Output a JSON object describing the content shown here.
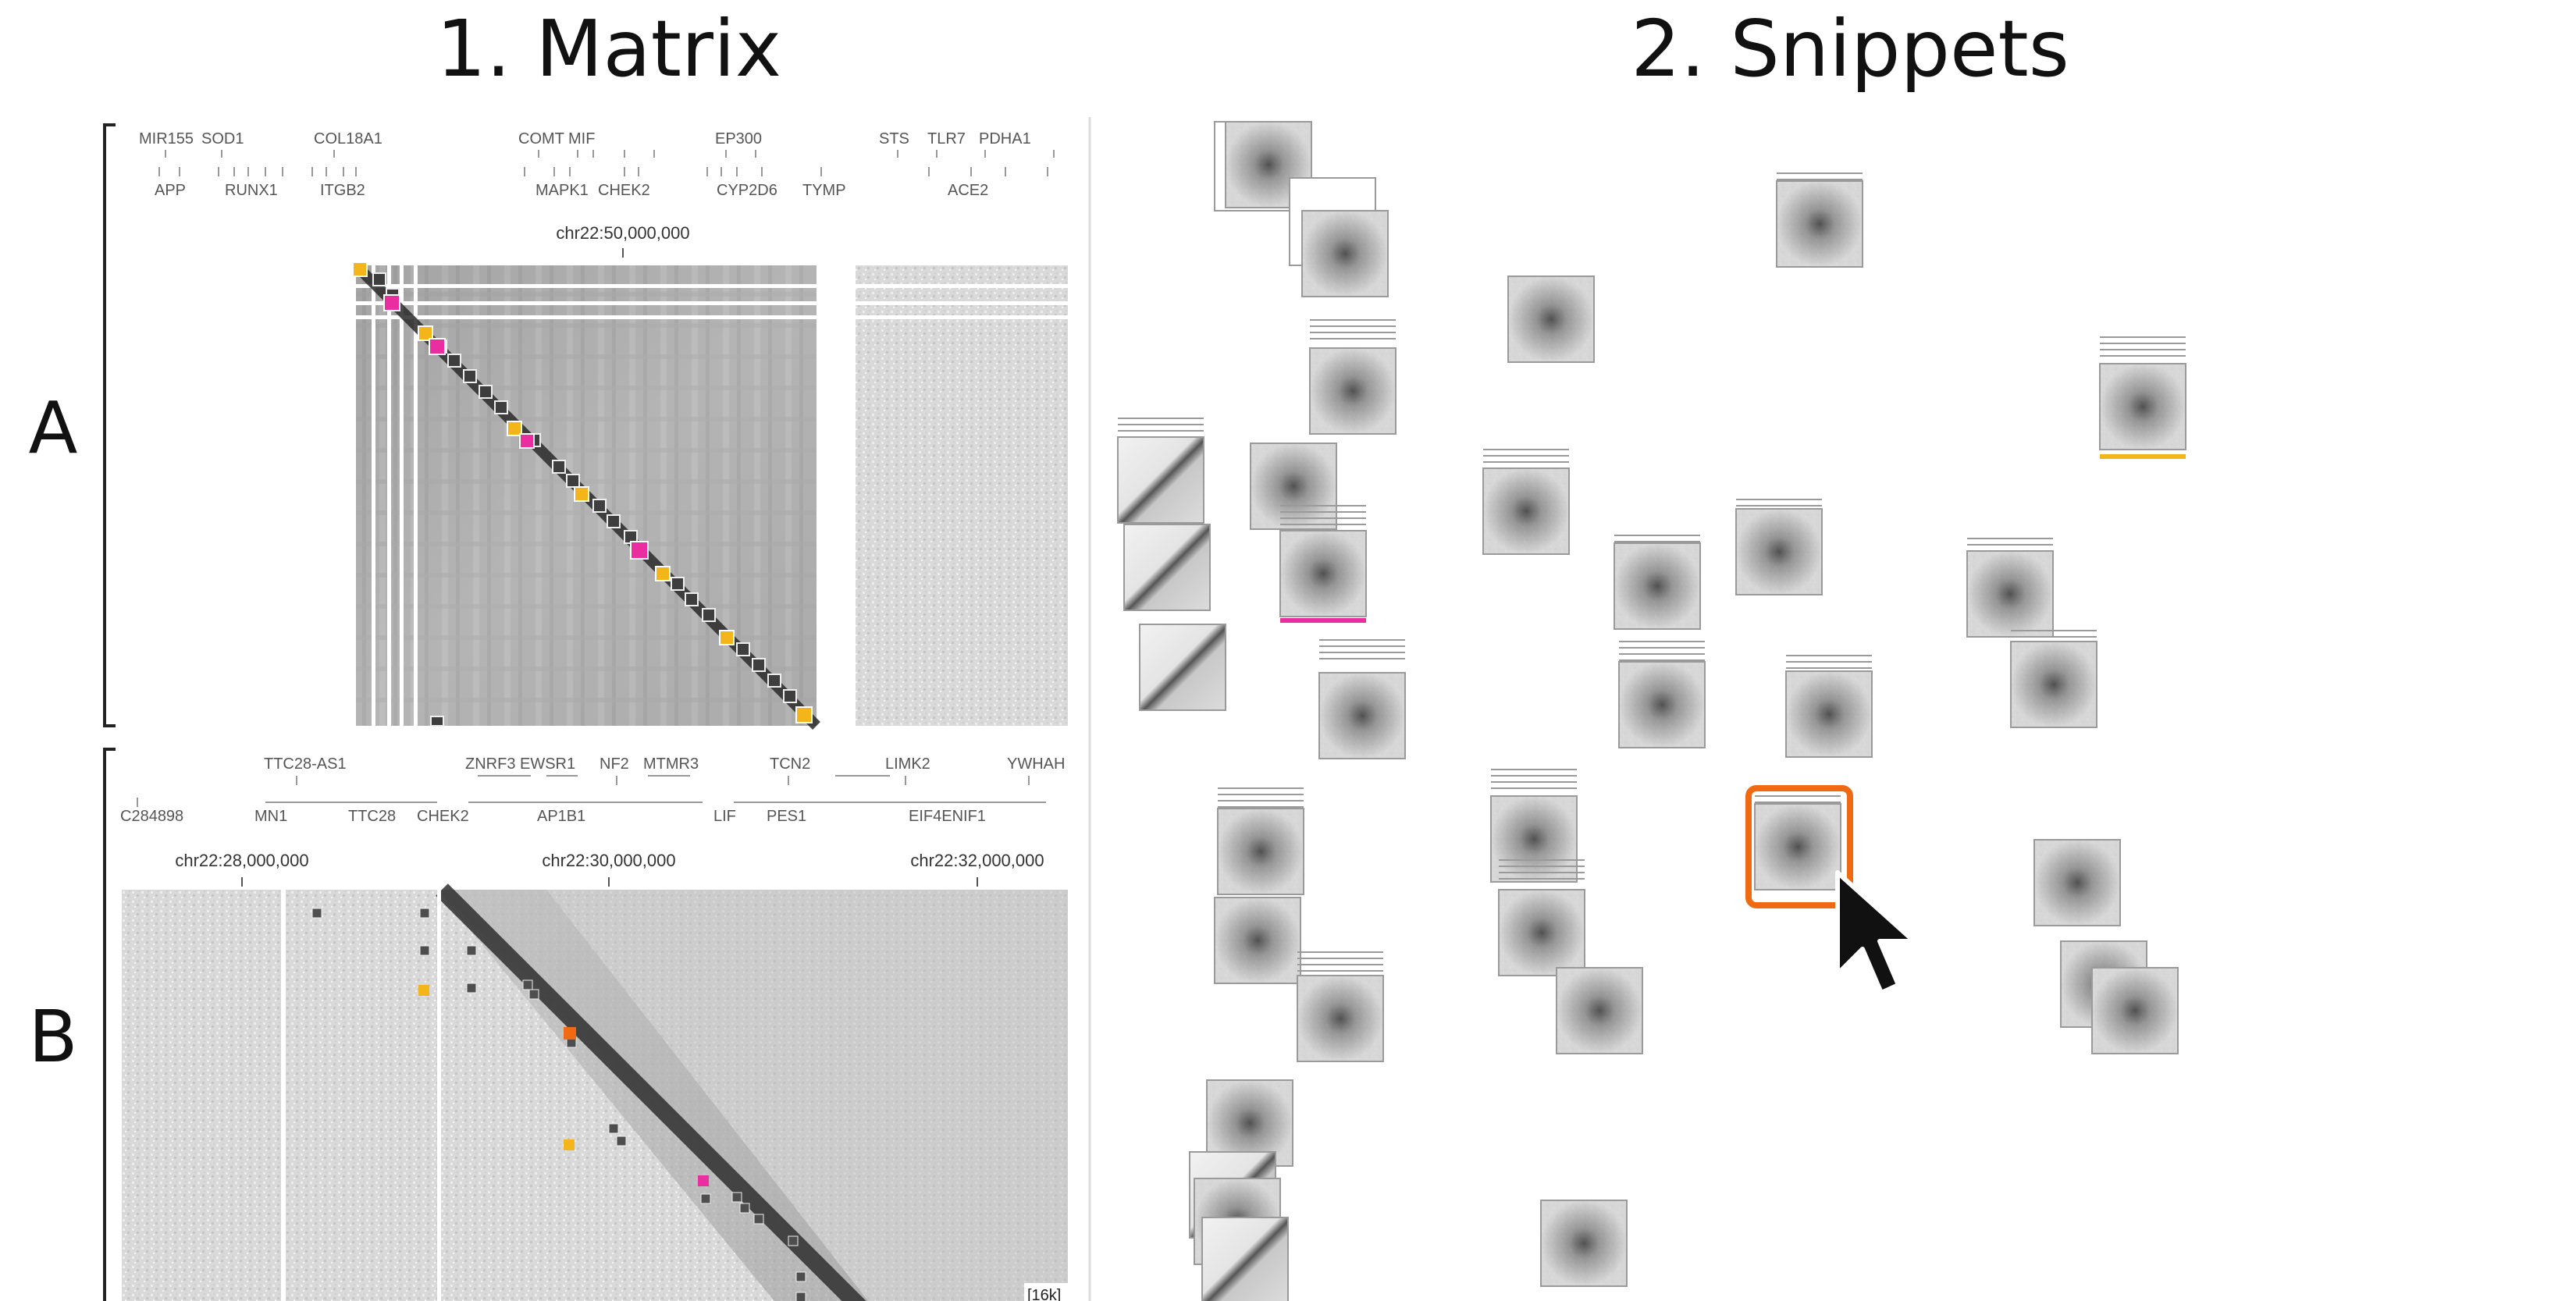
{
  "headings": {
    "matrix": "1. Matrix",
    "snippets": "2. Snippets"
  },
  "rows": {
    "a": "A",
    "b": "B"
  },
  "panel_a": {
    "genes_top": [
      "MIR155",
      "SOD1",
      "COL18A1",
      "COMT",
      "MIF",
      "EP300",
      "STS",
      "TLR7",
      "PDHA1"
    ],
    "genes_bottom": [
      "APP",
      "RUNX1",
      "ITGB2",
      "MAPK1",
      "CHEK2",
      "CYP2D6",
      "TYMP",
      "ACE2"
    ],
    "coord": "chr22:50,000,000"
  },
  "panel_b": {
    "genes_top": [
      "TTC28-AS1",
      "ZNRF3",
      "EWSR1",
      "NF2",
      "MTMR3",
      "TCN2",
      "LIMK2",
      "YWHAH"
    ],
    "genes_bottom": [
      "C284898",
      "MN1",
      "TTC28",
      "CHEK2",
      "AP1B1",
      "LIF",
      "PES1",
      "EIF4ENIF1"
    ],
    "coords": [
      "chr22:28,000,000",
      "chr22:30,000,000",
      "chr22:32,000,000"
    ],
    "zoom_label": "[16k]"
  },
  "colors": {
    "selected": "#f06a14",
    "yellow": "#f3b51a",
    "magenta": "#ea2ea0",
    "dark_marker": "#555555"
  },
  "cursor_icon": "arrow-cursor-icon"
}
